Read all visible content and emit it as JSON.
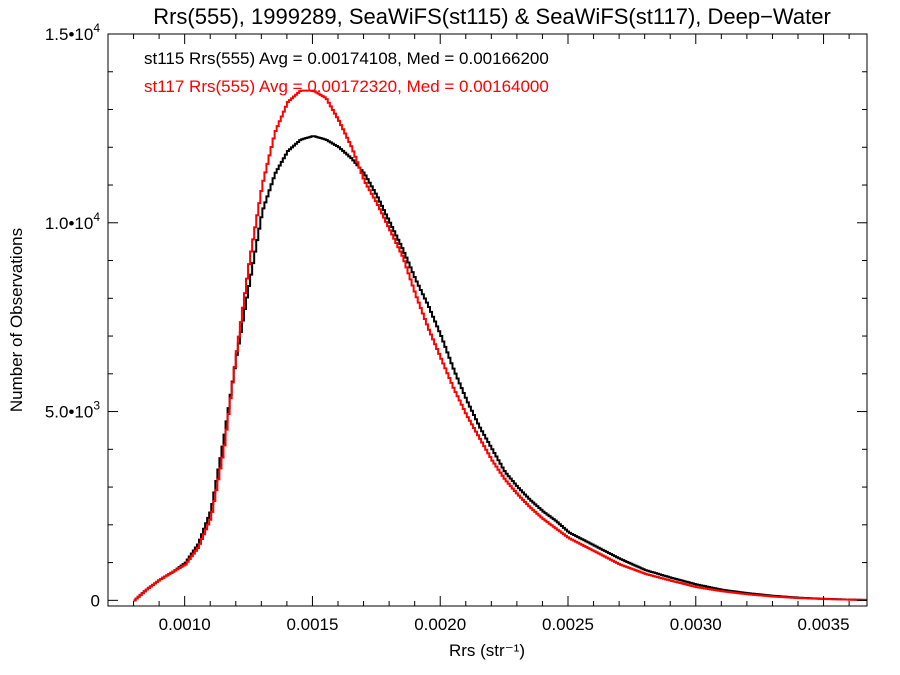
{
  "chart_data": {
    "type": "line",
    "title": "Rrs(555), 1999289, SeaWiFS(st115) & SeaWiFS(st117), Deep−Water",
    "xlabel": "Rrs (str⁻¹)",
    "ylabel": "Number of Observations",
    "xlim": [
      0.0007,
      0.00367
    ],
    "ylim": [
      -150,
      15000
    ],
    "x_ticks": [
      {
        "value": 0.001,
        "label": "0.0010"
      },
      {
        "value": 0.0015,
        "label": "0.0015"
      },
      {
        "value": 0.002,
        "label": "0.0020"
      },
      {
        "value": 0.0025,
        "label": "0.0025"
      },
      {
        "value": 0.003,
        "label": "0.0030"
      },
      {
        "value": 0.0035,
        "label": "0.0035"
      }
    ],
    "y_ticks": [
      {
        "value": 0,
        "label": "0"
      },
      {
        "value": 5000,
        "mantissa": "5.0•10",
        "exp": "3"
      },
      {
        "value": 10000,
        "mantissa": "1.0•10",
        "exp": "4"
      },
      {
        "value": 15000,
        "mantissa": "1.5•10",
        "exp": "4"
      }
    ],
    "annotations": [
      {
        "text": "st115 Rrs(555) Avg = 0.00174108, Med = 0.00166200",
        "color": "#000000"
      },
      {
        "text": "st117 Rrs(555) Avg = 0.00172320, Med = 0.00164000",
        "color": "#ff0000"
      }
    ],
    "grid": false,
    "series": [
      {
        "color": "#000000",
        "x": [
          0.0008,
          0.00085,
          0.0009,
          0.00095,
          0.001,
          0.00105,
          0.0011,
          0.00115,
          0.0012,
          0.00125,
          0.0013,
          0.00135,
          0.0014,
          0.00145,
          0.0015,
          0.00155,
          0.0016,
          0.00165,
          0.0017,
          0.00175,
          0.0018,
          0.00185,
          0.0019,
          0.00195,
          0.002,
          0.00205,
          0.0021,
          0.00215,
          0.0022,
          0.00225,
          0.0023,
          0.00235,
          0.0024,
          0.00245,
          0.0025,
          0.0026,
          0.0027,
          0.0028,
          0.0029,
          0.003,
          0.0031,
          0.0032,
          0.0033,
          0.0034,
          0.0035,
          0.0036,
          0.00367
        ],
        "y": [
          0,
          300,
          550,
          750,
          1000,
          1500,
          2400,
          4300,
          6500,
          8400,
          10300,
          11300,
          11900,
          12200,
          12300,
          12200,
          12000,
          11700,
          11300,
          10700,
          10000,
          9300,
          8500,
          7800,
          7000,
          6100,
          5300,
          4600,
          4000,
          3400,
          3000,
          2650,
          2350,
          2100,
          1800,
          1450,
          1100,
          800,
          600,
          420,
          280,
          190,
          120,
          70,
          40,
          20,
          10
        ]
      },
      {
        "color": "#ff0000",
        "x": [
          0.0008,
          0.00085,
          0.0009,
          0.00095,
          0.001,
          0.00105,
          0.0011,
          0.00115,
          0.0012,
          0.00125,
          0.0013,
          0.00135,
          0.0014,
          0.00145,
          0.0015,
          0.00155,
          0.0016,
          0.00165,
          0.0017,
          0.00175,
          0.0018,
          0.00185,
          0.0019,
          0.00195,
          0.002,
          0.00205,
          0.0021,
          0.00215,
          0.0022,
          0.00225,
          0.0023,
          0.00235,
          0.0024,
          0.00245,
          0.0025,
          0.0026,
          0.0027,
          0.0028,
          0.0029,
          0.003,
          0.0031,
          0.0032,
          0.0033,
          0.0034,
          0.0035,
          0.0036,
          0.00367
        ],
        "y": [
          0,
          300,
          550,
          750,
          950,
          1400,
          2200,
          4000,
          6600,
          9000,
          11000,
          12400,
          13200,
          13500,
          13500,
          13300,
          12700,
          12000,
          11100,
          10500,
          9800,
          9100,
          8100,
          7200,
          6400,
          5600,
          4900,
          4300,
          3700,
          3200,
          2800,
          2450,
          2150,
          1900,
          1650,
          1300,
          950,
          700,
          520,
          350,
          240,
          160,
          100,
          60,
          35,
          18,
          8
        ]
      }
    ]
  }
}
